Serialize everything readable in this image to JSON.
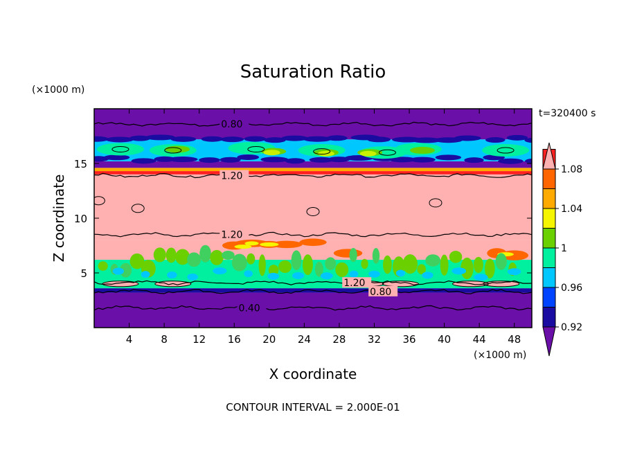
{
  "chart_data": {
    "type": "heatmap",
    "title": "Saturation Ratio",
    "xlabel": "X coordinate",
    "ylabel": "Z coordinate",
    "x_unit": "(×1000 m)",
    "y_unit": "(×1000 m)",
    "time_label": "t=320400 s",
    "footer": "CONTOUR INTERVAL = 2.000E-01",
    "xlim": [
      0,
      50
    ],
    "ylim": [
      0,
      20
    ],
    "x_ticks": [
      4,
      8,
      12,
      16,
      20,
      24,
      28,
      32,
      36,
      40,
      44,
      48
    ],
    "y_ticks": [
      5,
      10,
      15
    ],
    "colorbar": {
      "levels": [
        0.9,
        0.92,
        0.94,
        0.96,
        0.98,
        1.0,
        1.02,
        1.04,
        1.06,
        1.08,
        1.1
      ],
      "tick_labels": [
        "0.92",
        "0.96",
        "1",
        "1.04",
        "1.08"
      ],
      "tick_values": [
        0.92,
        0.96,
        1.0,
        1.04,
        1.08
      ],
      "colors": [
        "#6a0fa8",
        "#1a0ca0",
        "#0044ff",
        "#00c8ff",
        "#00f0a0",
        "#6ad000",
        "#f5f500",
        "#ffaa00",
        "#ff6600",
        "#ff2020",
        "#ffb0b0"
      ]
    },
    "layers": [
      {
        "z": [
          0,
          3.2
        ],
        "color": "#6a0fa8"
      },
      {
        "z": [
          3.2,
          3.6
        ],
        "color": "#1a0ca0"
      },
      {
        "z": [
          3.6,
          6.2
        ],
        "color": "#00f0a0"
      },
      {
        "z": [
          6.2,
          8.0
        ],
        "color": "#ffb0b0"
      },
      {
        "z": [
          8.0,
          14.0
        ],
        "color": "#ffb0b0"
      },
      {
        "z": [
          14.0,
          14.3
        ],
        "color": "#ff2020"
      },
      {
        "z": [
          14.3,
          14.6
        ],
        "color": "#ffaa00"
      },
      {
        "z": [
          14.6,
          15.2
        ],
        "color": "#6a0fa8"
      },
      {
        "z": [
          15.2,
          17.2
        ],
        "color": "#00c8ff"
      },
      {
        "z": [
          17.2,
          20.0
        ],
        "color": "#6a0fa8"
      }
    ],
    "contours": [
      {
        "level": "0.80",
        "z": 18.6,
        "label_x": 14.5
      },
      {
        "level": "1.20",
        "z": 13.9,
        "label_x": 14.5
      },
      {
        "level": "1.20",
        "z": 8.5,
        "label_x": 14.5
      },
      {
        "level": "1.20",
        "z": 4.1,
        "label_x": 28.5
      },
      {
        "level": "0.80",
        "z": 3.3,
        "label_x": 31.5
      },
      {
        "level": "0.40",
        "z": 1.8,
        "label_x": 16.5
      }
    ]
  }
}
